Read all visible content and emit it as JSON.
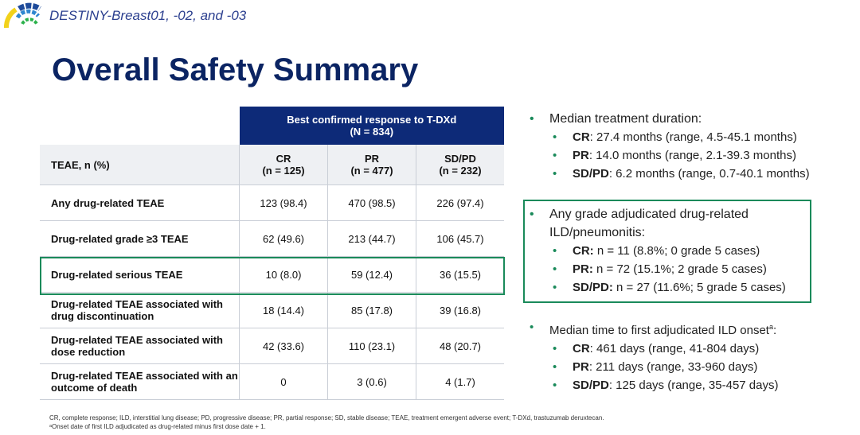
{
  "header": {
    "study": "DESTINY-Breast01, -02, and -03"
  },
  "title": "Overall Safety Summary",
  "table": {
    "group_header": "Best confirmed response to T-DXd",
    "group_n": "(N = 834)",
    "row_header": "TEAE, n (%)",
    "columns": [
      {
        "name": "CR",
        "n": "(n = 125)"
      },
      {
        "name": "PR",
        "n": "(n = 477)"
      },
      {
        "name": "SD/PD",
        "n": "(n = 232)"
      }
    ],
    "rows": [
      {
        "label": "Any drug-related TEAE",
        "values": [
          "123 (98.4)",
          "470 (98.5)",
          "226 (97.4)"
        ]
      },
      {
        "label": "Drug-related grade ≥3 TEAE",
        "values": [
          "62 (49.6)",
          "213 (44.7)",
          "106 (45.7)"
        ]
      },
      {
        "label": "Drug-related serious TEAE",
        "values": [
          "10 (8.0)",
          "59 (12.4)",
          "36 (15.5)"
        ]
      },
      {
        "label": "Drug-related TEAE associated with drug discontinuation",
        "values": [
          "18 (14.4)",
          "85 (17.8)",
          "39 (16.8)"
        ]
      },
      {
        "label": "Drug-related TEAE associated with dose reduction",
        "values": [
          "42 (33.6)",
          "110 (23.1)",
          "48 (20.7)"
        ]
      },
      {
        "label": "Drug-related TEAE associated with an outcome of death",
        "values": [
          "0",
          "3 (0.6)",
          "4 (1.7)"
        ]
      }
    ]
  },
  "right": {
    "sections": [
      {
        "title": "Median treatment duration:",
        "items": [
          {
            "k": "CR",
            "v": ": 27.4 months (range, 4.5-45.1 months)"
          },
          {
            "k": "PR",
            "v": ": 14.0 months (range, 2.1-39.3 months)"
          },
          {
            "k": "SD/PD",
            "v": ": 6.2 months (range, 0.7-40.1 months)"
          }
        ]
      },
      {
        "title": "Any grade adjudicated drug-related ILD/pneumonitis:",
        "items": [
          {
            "k": "CR:",
            "v": " n = 11 (8.8%; 0 grade 5 cases)"
          },
          {
            "k": "PR:",
            "v": " n = 72 (15.1%; 2 grade 5 cases)"
          },
          {
            "k": "SD/PD:",
            "v": " n = 27 (11.6%; 5 grade 5 cases)"
          }
        ]
      },
      {
        "title": "Median time to first adjudicated ILD onset",
        "sup": "a",
        "title_end": ":",
        "items": [
          {
            "k": "CR",
            "v": ": 461 days (range, 41-804 days)"
          },
          {
            "k": "PR",
            "v": ": 211 days (range, 33-960 days)"
          },
          {
            "k": "SD/PD",
            "v": ": 125 days (range, 35-457 days)"
          }
        ]
      }
    ]
  },
  "footnotes": [
    "CR, complete response; ILD, interstitial lung disease; PD, progressive disease; PR, partial response; SD, stable disease; TEAE, treatment emergent adverse event; T-DXd, trastuzumab deruxtecan.",
    "ᵃOnset date of first ILD adjudicated as drug-related minus first dose date + 1."
  ],
  "colors": {
    "navy": "#0d2a78",
    "green": "#1a8a5a"
  }
}
